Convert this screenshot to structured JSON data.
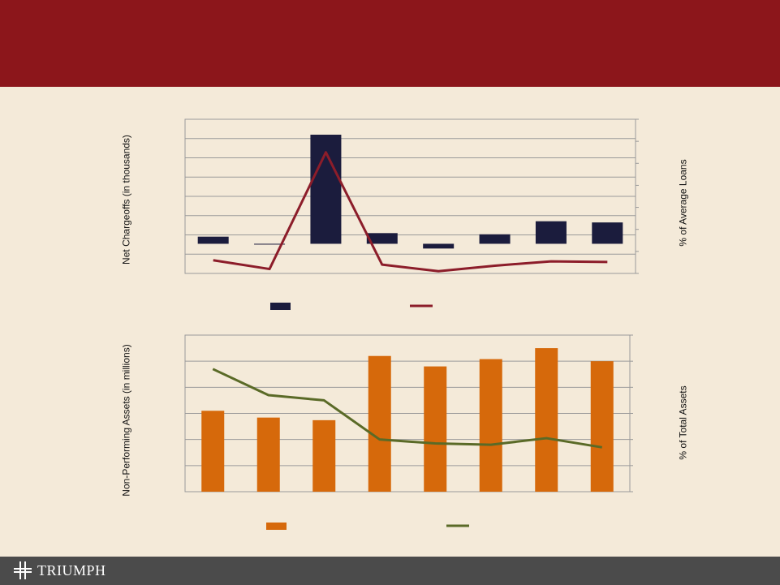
{
  "colors": {
    "header": "#8c161b",
    "footer": "#4b4b4b",
    "background": "#f4ead9",
    "bar_navy": "#1b1c3d",
    "line_maroon": "#8c1d2a",
    "bar_orange": "#d6690b",
    "line_olive": "#5a6a27"
  },
  "logo": {
    "text": "TRIUMPH",
    "icon": "triumph-cross-icon"
  },
  "chart_data": [
    {
      "type": "bar",
      "ylabel": "Net Chargeoffs (in thousands)",
      "y2label": "% of Average Loans",
      "ylim": [
        -2.5,
        10.5
      ],
      "y2lim": [
        0,
        7
      ],
      "grid": true,
      "legend": "bottom",
      "series": [
        {
          "type": "bar",
          "axis": "left",
          "color": "#1b1c3d",
          "values": [
            0.6,
            -0.05,
            9.2,
            0.9,
            -0.4,
            0.8,
            1.9,
            1.8
          ]
        },
        {
          "type": "line",
          "axis": "right",
          "color": "#8c1d2a",
          "values": [
            0.6,
            0.2,
            5.5,
            0.4,
            0.1,
            0.35,
            0.55,
            0.52
          ]
        }
      ]
    },
    {
      "type": "bar",
      "ylabel": "Non-Performing Assets (in millions)",
      "y2label": "% of Total Assets",
      "ylim": [
        0,
        30
      ],
      "y2lim": [
        0,
        6
      ],
      "grid": true,
      "legend": "bottom",
      "series": [
        {
          "type": "bar",
          "axis": "left",
          "color": "#d6690b",
          "values": [
            15.5,
            14.2,
            13.7,
            26,
            24,
            25.4,
            27.5,
            25
          ]
        },
        {
          "type": "line",
          "axis": "right",
          "color": "#5a6a27",
          "values": [
            4.7,
            3.7,
            3.5,
            2.0,
            1.85,
            1.8,
            2.05,
            1.7
          ]
        }
      ]
    }
  ]
}
